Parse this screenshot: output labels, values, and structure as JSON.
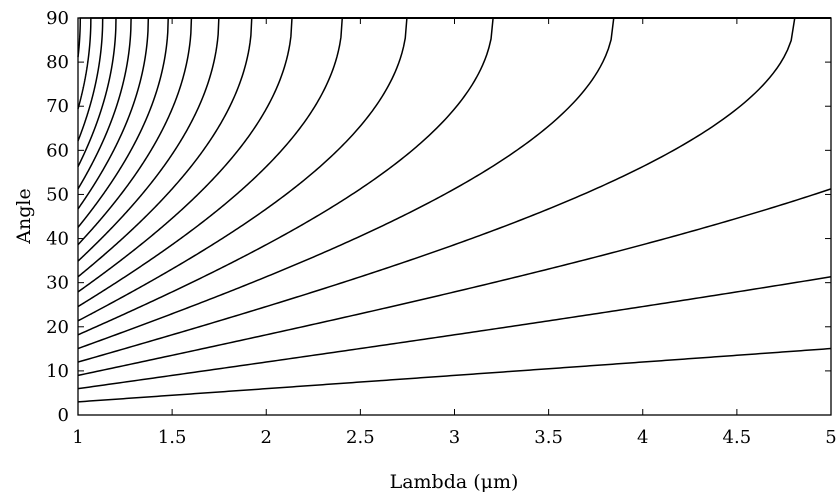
{
  "chart_data": {
    "type": "line",
    "title": "",
    "xlabel": "Lambda (μm)",
    "ylabel": "Angle",
    "xlim": [
      1,
      5
    ],
    "ylim": [
      0,
      90
    ],
    "grid": false,
    "legend": "none",
    "line_color": "#000000",
    "xticks": [
      "1",
      "1.5",
      "2",
      "2.5",
      "3",
      "3.5",
      "4",
      "4.5",
      "5"
    ],
    "yticks": [
      "0",
      "10",
      "20",
      "30",
      "40",
      "50",
      "60",
      "70",
      "80",
      "90"
    ],
    "series_formula": "angle = arcsin(min(1, m * lambda / 19.23)) in degrees, m = 1..24",
    "series": [
      {
        "order": 1,
        "x": [
          1,
          5
        ],
        "y": [
          3.0,
          15.1
        ]
      },
      {
        "order": 2,
        "x": [
          1,
          5
        ],
        "y": [
          6.0,
          31.3
        ]
      },
      {
        "order": 3,
        "x": [
          1,
          5
        ],
        "y": [
          9.0,
          51.3
        ]
      },
      {
        "order": 4,
        "x": [
          1,
          4.81
        ],
        "y": [
          12.0,
          90
        ]
      },
      {
        "order": 5,
        "x": [
          1,
          3.85
        ],
        "y": [
          15.1,
          90
        ]
      },
      {
        "order": 6,
        "x": [
          1,
          3.21
        ],
        "y": [
          18.2,
          90
        ]
      },
      {
        "order": 7,
        "x": [
          1,
          2.75
        ],
        "y": [
          21.3,
          90
        ]
      },
      {
        "order": 8,
        "x": [
          1,
          2.4
        ],
        "y": [
          24.6,
          90
        ]
      },
      {
        "order": 9,
        "x": [
          1,
          2.14
        ],
        "y": [
          27.9,
          90
        ]
      },
      {
        "order": 10,
        "x": [
          1,
          1.92
        ],
        "y": [
          31.3,
          90
        ]
      },
      {
        "order": 11,
        "x": [
          1,
          1.75
        ],
        "y": [
          34.9,
          90
        ]
      },
      {
        "order": 12,
        "x": [
          1,
          1.6
        ],
        "y": [
          38.6,
          90
        ]
      },
      {
        "order": 13,
        "x": [
          1,
          1.48
        ],
        "y": [
          42.5,
          90
        ]
      },
      {
        "order": 14,
        "x": [
          1,
          1.37
        ],
        "y": [
          46.7,
          90
        ]
      },
      {
        "order": 15,
        "x": [
          1,
          1.28
        ],
        "y": [
          51.3,
          90
        ]
      },
      {
        "order": 16,
        "x": [
          1,
          1.2
        ],
        "y": [
          56.3,
          90
        ]
      },
      {
        "order": 17,
        "x": [
          1,
          1.13
        ],
        "y": [
          62.1,
          90
        ]
      },
      {
        "order": 18,
        "x": [
          1,
          1.07
        ],
        "y": [
          69.4,
          90
        ]
      },
      {
        "order": 19,
        "x": [
          1,
          1.01
        ],
        "y": [
          81.1,
          90
        ]
      }
    ]
  }
}
